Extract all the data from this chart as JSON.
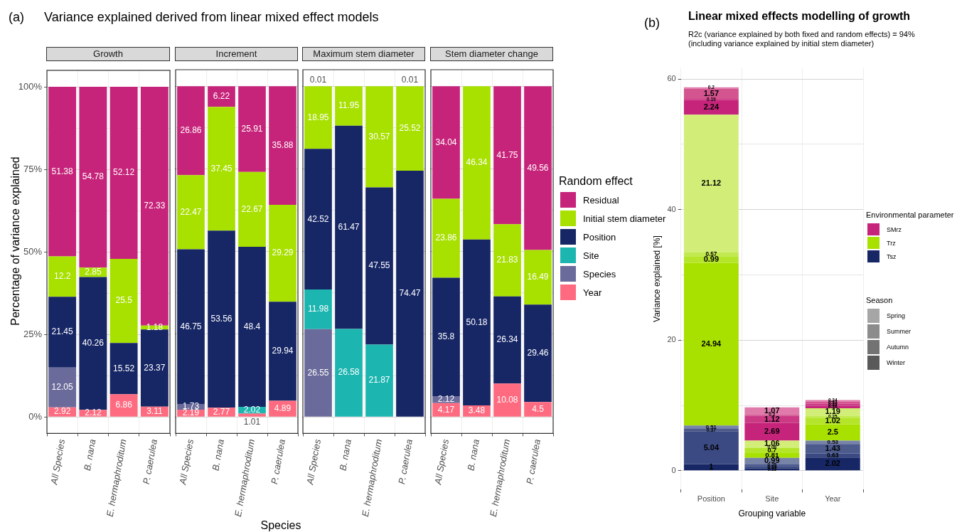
{
  "chart_data": [
    {
      "type": "bar",
      "title": "Growth",
      "annotations": [
        "(a)",
        "Variance explained derived from linear mixed effect models"
      ],
      "ylabel": "Percentage of variance explained",
      "stacked": true,
      "data_labels": true,
      "grid": true,
      "categories": [
        "All Species",
        "B. nana",
        "E. hermaphroditum",
        "P. caerulea"
      ],
      "ylim": [
        -5,
        105
      ],
      "yticks": [
        {
          "value": 0,
          "label": "0%"
        },
        {
          "value": 12.5,
          "label": null
        },
        {
          "value": 25,
          "label": "25%"
        },
        {
          "value": 37.5,
          "label": null
        },
        {
          "value": 50,
          "label": "50%"
        },
        {
          "value": 62.5,
          "label": null
        },
        {
          "value": 75,
          "label": "75%"
        },
        {
          "value": 87.5,
          "label": null
        },
        {
          "value": 100,
          "label": "100%"
        }
      ],
      "series": [
        {
          "color": "#fe6b80",
          "values": [
            2.92,
            2.12,
            6.86,
            3.11
          ]
        },
        {
          "color": "#6b6b9b",
          "values": [
            12.05,
            null,
            null,
            null
          ]
        },
        {
          "color": "#1db5b0",
          "values": [
            null,
            null,
            null,
            null
          ]
        },
        {
          "color": "#172766",
          "values": [
            21.45,
            40.26,
            15.52,
            23.37
          ]
        },
        {
          "color": "#a8e000",
          "values": [
            12.2,
            2.85,
            25.5,
            1.18
          ]
        },
        {
          "color": "#c6247a",
          "values": [
            51.38,
            54.78,
            52.12,
            72.33
          ]
        }
      ]
    },
    {
      "type": "bar",
      "title": "Increment",
      "xlabel": "Species",
      "stacked": true,
      "data_labels": true,
      "grid": true,
      "tick_labels": "x",
      "categories": [
        "All Species",
        "B. nana",
        "E. hermaphroditum",
        "P. caerulea"
      ],
      "ylim": [
        -5,
        105
      ],
      "yticks": [
        0,
        {
          "value": 12.5,
          "label": null
        },
        25,
        {
          "value": 37.5,
          "label": null
        },
        50,
        {
          "value": 62.5,
          "label": null
        },
        75,
        {
          "value": 87.5,
          "label": null
        },
        100
      ],
      "series": [
        {
          "color": "#fe6b80",
          "values": [
            2.19,
            2.77,
            1.01,
            4.89
          ]
        },
        {
          "color": "#6b6b9b",
          "values": [
            1.73,
            null,
            null,
            null
          ]
        },
        {
          "color": "#1db5b0",
          "values": [
            null,
            null,
            2.02,
            null
          ]
        },
        {
          "color": "#172766",
          "values": [
            46.75,
            53.56,
            48.4,
            29.94
          ]
        },
        {
          "color": "#a8e000",
          "values": [
            22.47,
            37.45,
            22.67,
            29.29
          ]
        },
        {
          "color": "#c6247a",
          "values": [
            26.86,
            6.22,
            25.91,
            35.88
          ]
        }
      ]
    },
    {
      "type": "bar",
      "title": "Maximum stem diameter",
      "stacked": true,
      "data_labels": true,
      "grid": true,
      "tick_labels": "x",
      "categories": [
        "All Species",
        "B. nana",
        "E. hermaphroditum",
        "P. caerulea"
      ],
      "ylim": [
        -5,
        105
      ],
      "yticks": [
        0,
        {
          "value": 12.5,
          "label": null
        },
        25,
        {
          "value": 37.5,
          "label": null
        },
        50,
        {
          "value": 62.5,
          "label": null
        },
        75,
        {
          "value": 87.5,
          "label": null
        },
        100
      ],
      "series": [
        {
          "color": "#fe6b80",
          "values": [
            null,
            null,
            null,
            null
          ]
        },
        {
          "color": "#6b6b9b",
          "values": [
            26.55,
            null,
            null,
            null
          ]
        },
        {
          "color": "#1db5b0",
          "values": [
            11.98,
            26.58,
            21.87,
            null
          ]
        },
        {
          "color": "#172766",
          "values": [
            42.52,
            61.47,
            47.55,
            74.47
          ]
        },
        {
          "color": "#a8e000",
          "values": [
            18.95,
            11.95,
            30.57,
            25.52
          ]
        },
        {
          "color": "#c6247a",
          "values": [
            0.01,
            null,
            null,
            0.01
          ]
        }
      ]
    },
    {
      "type": "bar",
      "title": "Stem diameter change",
      "stacked": true,
      "data_labels": true,
      "grid": true,
      "tick_labels": "x",
      "legend": "right",
      "legend_title": "Random effect",
      "categories": [
        "All Species",
        "B. nana",
        "E. hermaphroditum",
        "P. caerulea"
      ],
      "ylim": [
        -5,
        105
      ],
      "yticks": [
        0,
        {
          "value": 12.5,
          "label": null
        },
        25,
        {
          "value": 37.5,
          "label": null
        },
        50,
        {
          "value": 62.5,
          "label": null
        },
        75,
        {
          "value": 87.5,
          "label": null
        },
        100
      ],
      "series": [
        {
          "name": "Year",
          "color": "#fe6b80",
          "values": [
            4.17,
            3.48,
            10.08,
            4.5
          ]
        },
        {
          "name": "Species",
          "color": "#6b6b9b",
          "values": [
            2.12,
            null,
            null,
            null
          ]
        },
        {
          "name": "Site",
          "color": "#1db5b0",
          "values": [
            null,
            null,
            null,
            null
          ]
        },
        {
          "name": "Position",
          "color": "#172766",
          "values": [
            35.8,
            50.18,
            26.34,
            29.46
          ]
        },
        {
          "name": "Initial stem diameter",
          "color": "#a8e000",
          "values": [
            23.86,
            46.34,
            21.83,
            16.49
          ]
        },
        {
          "name": "Residual",
          "color": "#c6247a",
          "values": [
            34.04,
            null,
            41.75,
            49.56
          ]
        }
      ]
    },
    {
      "type": "bar",
      "title": "Linear mixed effects modelling of growth",
      "subtitle": "R2c (variance explained by both fixed and random effects) = 94%\n(including variance explained by initial stem diameter)",
      "annotations": [
        "(b)",
        "Season",
        "Spring",
        "Summer",
        "Autumn",
        "Winter"
      ],
      "xlabel": "Grouping variable",
      "ylabel": "Variance explained [%]",
      "stacked": true,
      "data_labels": true,
      "grid": true,
      "legend": "right",
      "legend_title": "Environmental parameter",
      "categories": [
        "Position",
        "Site",
        "Year"
      ],
      "ylim": [
        -2.9,
        61.7
      ],
      "yticks": [
        0,
        {
          "value": 10,
          "label": null
        },
        20,
        {
          "value": 30,
          "label": null
        },
        40,
        {
          "value": 50,
          "label": null
        },
        60
      ],
      "series": [
        {
          "name": "Tsz",
          "color": "#172766",
          "values": [
            1,
            0.33,
            2.02
          ]
        },
        {
          "color": "#3b4a82",
          "values": [
            5.04,
            0.39,
            0.63
          ]
        },
        {
          "color": "#4c5a8c",
          "values": [
            0.37,
            0.25,
            1.43
          ]
        },
        {
          "color": "#7883a8",
          "values": [
            0.51,
            0.99,
            0.53
          ]
        },
        {
          "name": "Trz",
          "color": "#a8e000",
          "values": [
            24.94,
            0.81,
            2.5
          ]
        },
        {
          "color": "#b5e52a",
          "values": [
            0.99,
            0.7,
            1.02
          ]
        },
        {
          "color": "#c2ea50",
          "values": [
            0.57,
            0.08,
            0.25
          ]
        },
        {
          "color": "#d2ee78",
          "values": [
            21.12,
            1.06,
            1.19
          ]
        },
        {
          "name": "SMrz",
          "color": "#c6247a",
          "values": [
            2.24,
            2.69,
            0.36
          ]
        },
        {
          "color": "#cc3a86",
          "values": [
            0.19,
            1.12,
            0.33
          ]
        },
        {
          "color": "#d4548f",
          "values": [
            1.57,
            0.2,
            0.33
          ]
        },
        {
          "color": "#e07aaa",
          "values": [
            0.2,
            1.07,
            0.24
          ]
        }
      ]
    }
  ]
}
